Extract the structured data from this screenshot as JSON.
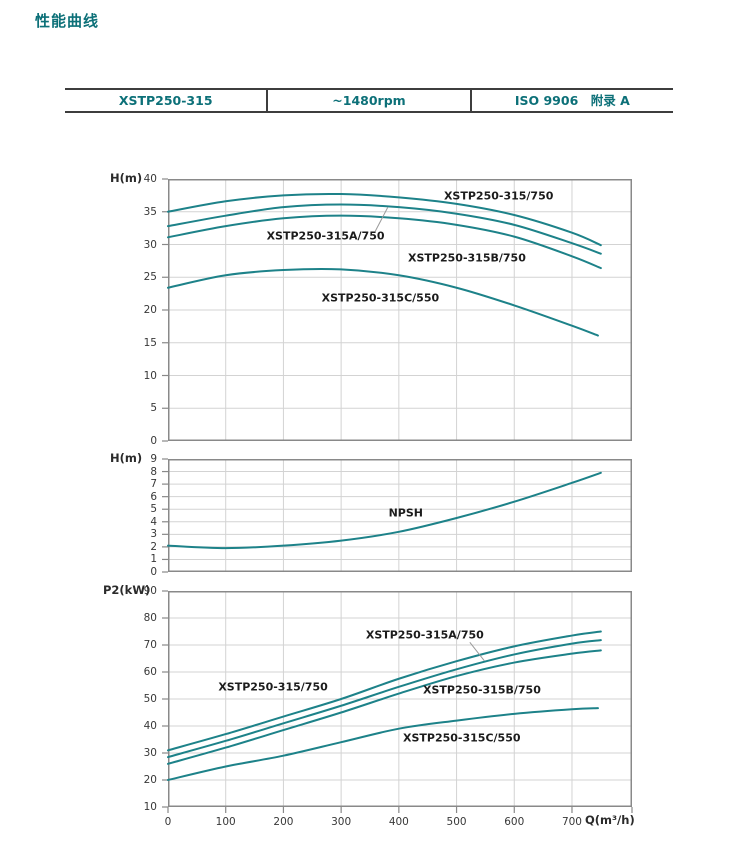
{
  "page": {
    "title": "性能曲线"
  },
  "header_table": {
    "cells": [
      "XSTP250-315",
      "~1480rpm",
      "ISO 9906　附录 A"
    ]
  },
  "colors": {
    "accent_teal": "#0c7078",
    "curve": "#1d8289",
    "grid": "#d3d3d3",
    "chart_border": "#898989",
    "leader": "#9a9a9a",
    "tick_text": "#383838"
  },
  "chart_data": [
    {
      "type": "line",
      "name": "head-flow-curves",
      "ylabel": "H(m)",
      "xlabel": "",
      "ylim": [
        0,
        40
      ],
      "xlim": [
        0,
        804
      ],
      "yticks": [
        40,
        35,
        30,
        25,
        20,
        15,
        10,
        5,
        0
      ],
      "xticks": [
        0,
        100,
        200,
        300,
        400,
        500,
        600,
        700
      ],
      "grid": true,
      "x_axis": false,
      "series": [
        {
          "name": "XSTP250-315/750",
          "points": [
            [
              0,
              35.0
            ],
            [
              100,
              36.6
            ],
            [
              200,
              37.5
            ],
            [
              300,
              37.7
            ],
            [
              400,
              37.2
            ],
            [
              500,
              36.2
            ],
            [
              600,
              34.5
            ],
            [
              700,
              31.8
            ],
            [
              750,
              29.9
            ]
          ]
        },
        {
          "name": "XSTP250-315A/750",
          "points": [
            [
              0,
              32.8
            ],
            [
              100,
              34.4
            ],
            [
              200,
              35.7
            ],
            [
              300,
              36.1
            ],
            [
              400,
              35.7
            ],
            [
              500,
              34.7
            ],
            [
              600,
              33.0
            ],
            [
              700,
              30.2
            ],
            [
              750,
              28.6
            ]
          ]
        },
        {
          "name": "XSTP250-315B/750",
          "points": [
            [
              0,
              31.1
            ],
            [
              100,
              32.8
            ],
            [
              200,
              34.0
            ],
            [
              300,
              34.4
            ],
            [
              400,
              34.0
            ],
            [
              500,
              33.0
            ],
            [
              600,
              31.2
            ],
            [
              700,
              28.2
            ],
            [
              750,
              26.4
            ]
          ]
        },
        {
          "name": "XSTP250-315C/550",
          "points": [
            [
              0,
              23.4
            ],
            [
              100,
              25.3
            ],
            [
              200,
              26.1
            ],
            [
              300,
              26.2
            ],
            [
              400,
              25.3
            ],
            [
              500,
              23.4
            ],
            [
              600,
              20.7
            ],
            [
              700,
              17.6
            ],
            [
              745,
              16.1
            ]
          ]
        }
      ],
      "annotations": [
        {
          "text": "XSTP250-315/750",
          "x": 573,
          "y": 37.4
        },
        {
          "text": "XSTP250-315A/750",
          "x": 273,
          "y": 31.3,
          "leader": [
            [
              359,
              32.0
            ],
            [
              381,
              35.7
            ]
          ]
        },
        {
          "text": "XSTP250-315B/750",
          "x": 518,
          "y": 28.0
        },
        {
          "text": "XSTP250-315C/550",
          "x": 368,
          "y": 21.8
        }
      ]
    },
    {
      "type": "line",
      "name": "npsh-curve",
      "ylabel": "H(m)",
      "xlabel": "",
      "ylim": [
        0,
        9
      ],
      "xlim": [
        0,
        804
      ],
      "yticks": [
        9,
        8,
        7,
        6,
        5,
        4,
        3,
        2,
        1,
        0
      ],
      "xticks": [
        0,
        100,
        200,
        300,
        400,
        500,
        600,
        700
      ],
      "grid": true,
      "x_axis": false,
      "series": [
        {
          "name": "NPSH",
          "points": [
            [
              0,
              2.1
            ],
            [
              100,
              1.9
            ],
            [
              200,
              2.1
            ],
            [
              300,
              2.5
            ],
            [
              400,
              3.2
            ],
            [
              500,
              4.3
            ],
            [
              600,
              5.6
            ],
            [
              700,
              7.1
            ],
            [
              750,
              7.9
            ]
          ]
        }
      ],
      "annotations": [
        {
          "text": "NPSH",
          "x": 412,
          "y": 4.7
        }
      ]
    },
    {
      "type": "line",
      "name": "power-flow-curves",
      "ylabel": "P2(kW)",
      "xlabel": "Q(m³/h)",
      "ylim": [
        10,
        90
      ],
      "xlim": [
        0,
        804
      ],
      "yticks": [
        90,
        80,
        70,
        60,
        50,
        40,
        30,
        20,
        10
      ],
      "xticks": [
        0,
        100,
        200,
        300,
        400,
        500,
        600,
        700
      ],
      "grid": true,
      "x_axis": true,
      "series": [
        {
          "name": "XSTP250-315/750",
          "points": [
            [
              0,
              31
            ],
            [
              100,
              37
            ],
            [
              200,
              43.5
            ],
            [
              300,
              50
            ],
            [
              400,
              57.5
            ],
            [
              500,
              64
            ],
            [
              600,
              69.5
            ],
            [
              700,
              73.5
            ],
            [
              750,
              75
            ]
          ]
        },
        {
          "name": "XSTP250-315A/750",
          "points": [
            [
              0,
              28.5
            ],
            [
              100,
              34.5
            ],
            [
              200,
              41
            ],
            [
              300,
              47.5
            ],
            [
              400,
              54.5
            ],
            [
              500,
              61
            ],
            [
              600,
              66.5
            ],
            [
              700,
              70.5
            ],
            [
              750,
              71.8
            ]
          ]
        },
        {
          "name": "XSTP250-315B/750",
          "points": [
            [
              0,
              26
            ],
            [
              100,
              32
            ],
            [
              200,
              38.5
            ],
            [
              300,
              45
            ],
            [
              400,
              52
            ],
            [
              500,
              58.5
            ],
            [
              600,
              63.5
            ],
            [
              700,
              66.8
            ],
            [
              750,
              68
            ]
          ]
        },
        {
          "name": "XSTP250-315C/550",
          "points": [
            [
              0,
              20
            ],
            [
              100,
              25
            ],
            [
              200,
              29
            ],
            [
              300,
              34
            ],
            [
              400,
              39
            ],
            [
              500,
              42
            ],
            [
              600,
              44.5
            ],
            [
              700,
              46.2
            ],
            [
              745,
              46.6
            ]
          ]
        }
      ],
      "annotations": [
        {
          "text": "XSTP250-315/750",
          "x": 182,
          "y": 54.4
        },
        {
          "text": "XSTP250-315A/750",
          "x": 445,
          "y": 73.7,
          "leader": [
            [
              523,
              71.0
            ],
            [
              548,
              64.2
            ]
          ]
        },
        {
          "text": "XSTP250-315B/750",
          "x": 544,
          "y": 53.3
        },
        {
          "text": "XSTP250-315C/550",
          "x": 509,
          "y": 35.6
        }
      ]
    }
  ]
}
